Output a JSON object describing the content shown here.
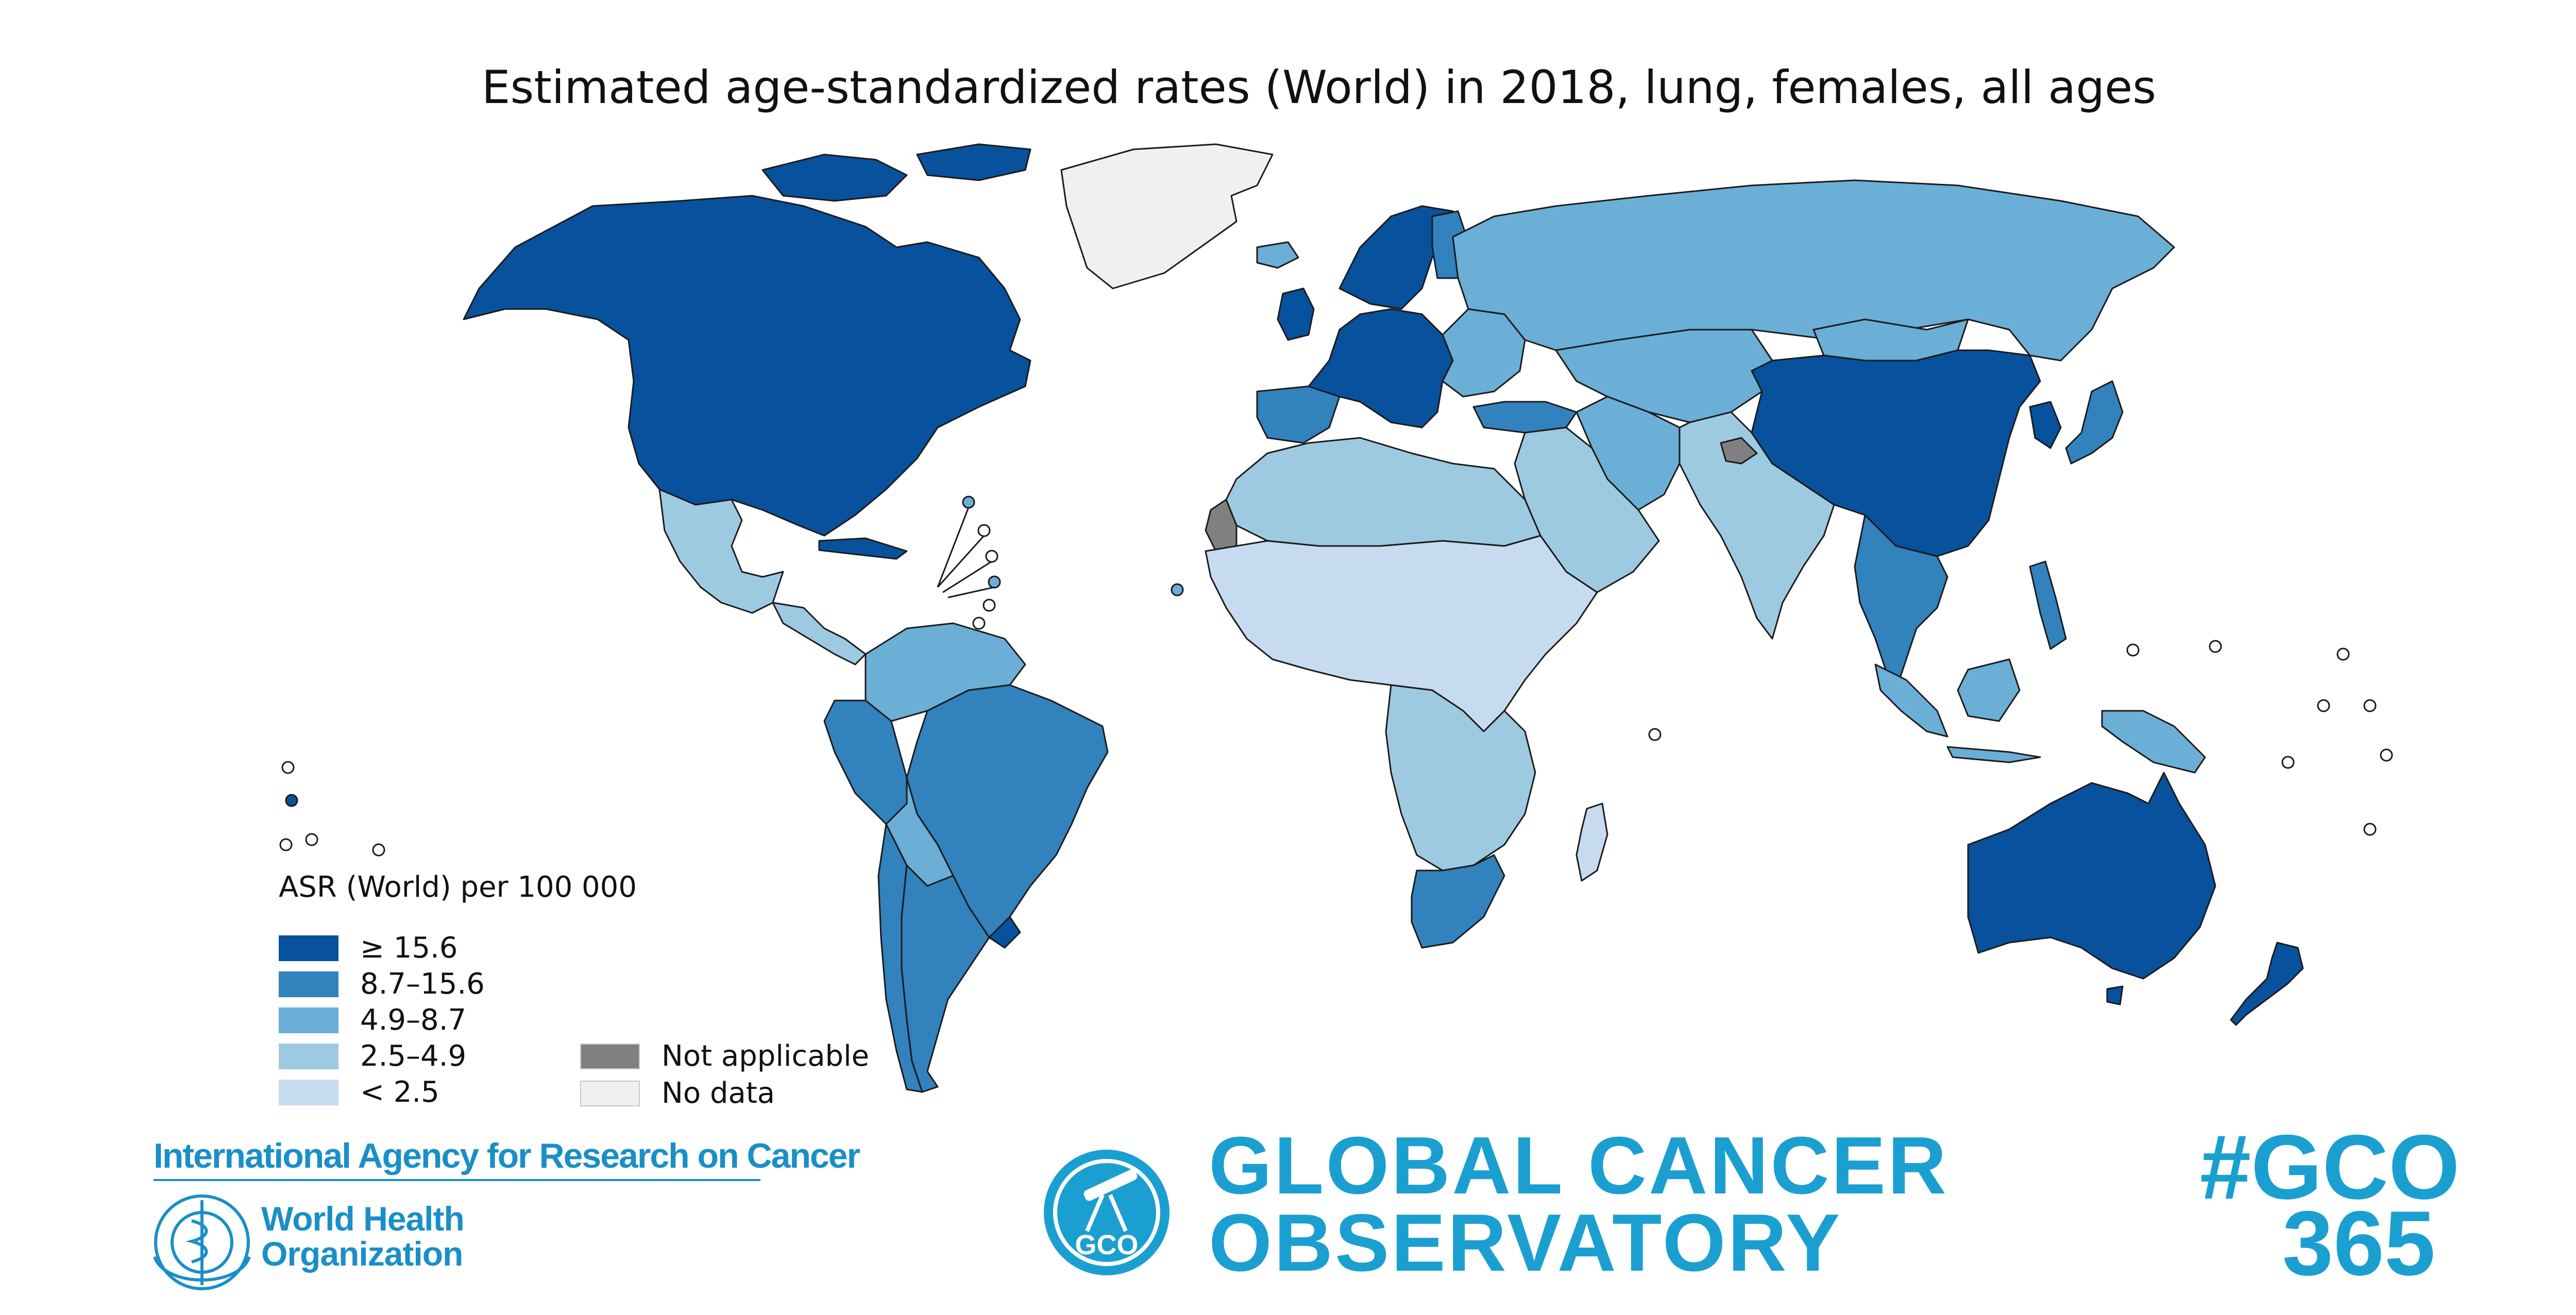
{
  "title": "Estimated age-standardized rates (World) in 2018, lung, females, all ages",
  "legend": {
    "title": "ASR (World) per 100 000",
    "classes": [
      {
        "label": "≥ 15.6",
        "color": "#08519c"
      },
      {
        "label": "8.7–15.6",
        "color": "#3182bd"
      },
      {
        "label": "4.9–8.7",
        "color": "#6baed6"
      },
      {
        "label": "2.5–4.9",
        "color": "#9ecae1"
      },
      {
        "label": "< 2.5",
        "color": "#c6dbef"
      }
    ],
    "extra": [
      {
        "label": "Not applicable",
        "color": "#808080"
      },
      {
        "label": "No data",
        "color": "#f0f0f0"
      }
    ]
  },
  "regions": [
    {
      "name": "North America",
      "class": "≥ 15.6"
    },
    {
      "name": "Greenland",
      "class": "No data"
    },
    {
      "name": "Mexico",
      "class": "2.5–4.9"
    },
    {
      "name": "Central America",
      "class": "2.5–4.9"
    },
    {
      "name": "Cuba",
      "class": "≥ 15.6"
    },
    {
      "name": "Colombia / Venezuela",
      "class": "4.9–8.7"
    },
    {
      "name": "Brazil",
      "class": "8.7–15.6"
    },
    {
      "name": "Peru",
      "class": "8.7–15.6"
    },
    {
      "name": "Bolivia / Paraguay",
      "class": "4.9–8.7"
    },
    {
      "name": "Argentina",
      "class": "8.7–15.6"
    },
    {
      "name": "Chile",
      "class": "8.7–15.6"
    },
    {
      "name": "Uruguay",
      "class": "≥ 15.6"
    },
    {
      "name": "Northern & Western Europe",
      "class": "≥ 15.6"
    },
    {
      "name": "Iberia",
      "class": "8.7–15.6"
    },
    {
      "name": "Eastern Europe",
      "class": "4.9–8.7"
    },
    {
      "name": "Russia",
      "class": "4.9–8.7"
    },
    {
      "name": "Central Asia",
      "class": "4.9–8.7"
    },
    {
      "name": "Turkey",
      "class": "8.7–15.6"
    },
    {
      "name": "Middle East",
      "class": "2.5–4.9"
    },
    {
      "name": "Iran",
      "class": "4.9–8.7"
    },
    {
      "name": "South Asia",
      "class": "2.5–4.9"
    },
    {
      "name": "China",
      "class": "≥ 15.6"
    },
    {
      "name": "Mongolia",
      "class": "4.9–8.7"
    },
    {
      "name": "Korea",
      "class": "≥ 15.6"
    },
    {
      "name": "Japan",
      "class": "8.7–15.6"
    },
    {
      "name": "Southeast Asia mainland",
      "class": "8.7–15.6"
    },
    {
      "name": "Indonesia",
      "class": "4.9–8.7"
    },
    {
      "name": "Philippines",
      "class": "8.7–15.6"
    },
    {
      "name": "Papua New Guinea",
      "class": "4.9–8.7"
    },
    {
      "name": "Australia",
      "class": "≥ 15.6"
    },
    {
      "name": "New Zealand",
      "class": "≥ 15.6"
    },
    {
      "name": "North Africa",
      "class": "2.5–4.9"
    },
    {
      "name": "Western Sahara",
      "class": "Not applicable"
    },
    {
      "name": "West & Central Africa",
      "class": "< 2.5"
    },
    {
      "name": "Southern Africa",
      "class": "2.5–4.9"
    },
    {
      "name": "South Africa",
      "class": "8.7–15.6"
    },
    {
      "name": "Madagascar",
      "class": "< 2.5"
    },
    {
      "name": "Kashmir",
      "class": "Not applicable"
    }
  ],
  "logos": {
    "iarc": "International Agency for Research on Cancer",
    "who_line1": "World Health",
    "who_line2": "Organization",
    "gco_badge": "GCO",
    "gco_line1": "GLOBAL CANCER",
    "gco_line2": "OBSERVATORY",
    "hashtag_line1": "#GCO",
    "hashtag_line2": "365"
  }
}
